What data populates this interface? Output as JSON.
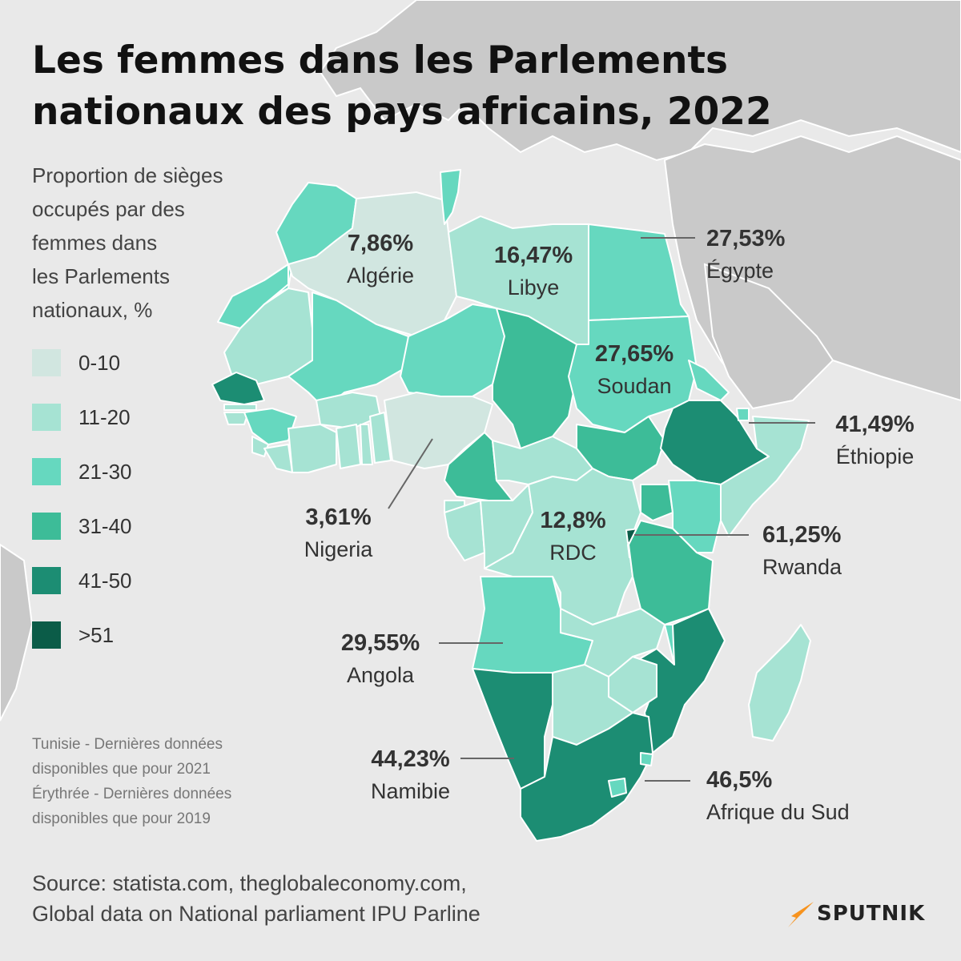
{
  "title": {
    "line1": "Les femmes dans les Parlements",
    "line2": "nationaux des pays africains, 2022"
  },
  "legend": {
    "title_lines": [
      "Proportion de sièges",
      "occupés par des",
      "femmes dans",
      "les Parlements",
      "nationaux, %"
    ],
    "items": [
      {
        "label": "0-10",
        "color": "#d1e6e0"
      },
      {
        "label": "11-20",
        "color": "#a6e3d3"
      },
      {
        "label": "21-30",
        "color": "#66d8bf"
      },
      {
        "label": "31-40",
        "color": "#3dbc98"
      },
      {
        "label": "41-50",
        "color": "#1c8d73"
      },
      {
        "label": ">51",
        "color": "#0b5c48"
      }
    ]
  },
  "callouts": {
    "algerie": {
      "value": "7,86%",
      "name": "Algérie"
    },
    "libye": {
      "value": "16,47%",
      "name": "Libye"
    },
    "egypte": {
      "value": "27,53%",
      "name": "Égypte"
    },
    "soudan": {
      "value": "27,65%",
      "name": "Soudan"
    },
    "ethiopie": {
      "value": "41,49%",
      "name": "Éthiopie"
    },
    "nigeria": {
      "value": "3,61%",
      "name": "Nigeria"
    },
    "rdc": {
      "value": "12,8%",
      "name": "RDC"
    },
    "rwanda": {
      "value": "61,25%",
      "name": "Rwanda"
    },
    "angola": {
      "value": "29,55%",
      "name": "Angola"
    },
    "namibie": {
      "value": "44,23%",
      "name": "Namibie"
    },
    "afrique_du_sud": {
      "value": "46,5%",
      "name": "Afrique du Sud"
    }
  },
  "notes": [
    "Tunisie - Dernières données",
    "disponibles que pour 2021",
    "Érythrée - Dernières données",
    "disponibles que pour 2019"
  ],
  "source": {
    "line1": "Source: statista.com, theglobaleconomy.com,",
    "line2": "Global data on National parliament IPU Parline"
  },
  "logo": {
    "text": "SPUTNIK",
    "color": "#f7931e"
  },
  "colors": {
    "background": "#e9e9e9",
    "other_land": "#c9c9c9",
    "borders": "#ffffff",
    "leader_lines": "#666666"
  }
}
